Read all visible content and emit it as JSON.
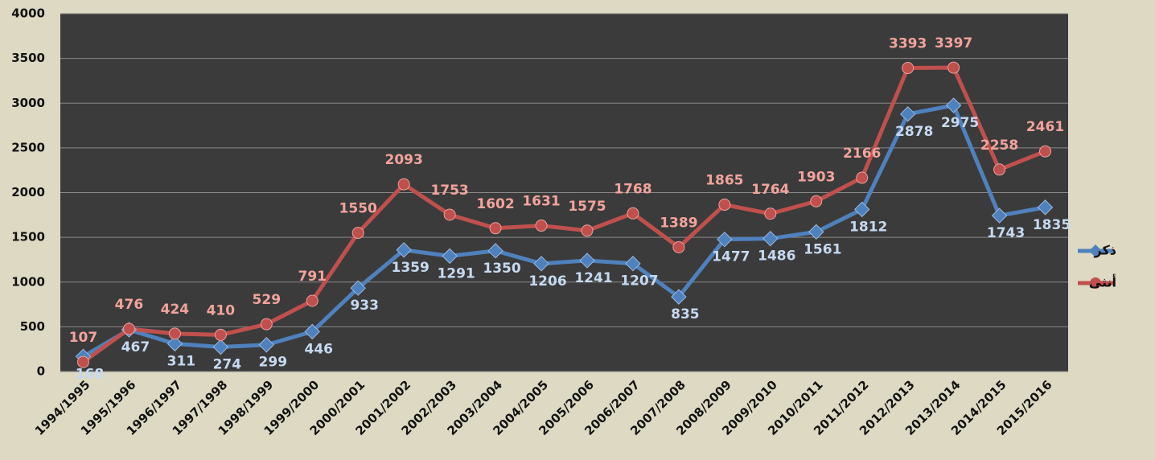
{
  "chart_data": {
    "type": "line",
    "categories": [
      "1994/1995",
      "1995/1996",
      "1996/1997",
      "1997/1998",
      "1998/1999",
      "1999/2000",
      "2000/2001",
      "2001/2002",
      "2002/2003",
      "2003/2004",
      "2004/2005",
      "2005/2006",
      "2006/2007",
      "2007/2008",
      "2008/2009",
      "2009/2010",
      "2010/2011",
      "2011/2012",
      "2012/2013",
      "2013/2014",
      "2014/2015",
      "2015/2016"
    ],
    "series": [
      {
        "name": "ذكر",
        "color": "#4f81bd",
        "marker": "diamond",
        "label_color": "#c6d9f1",
        "values": [
          168,
          467,
          311,
          274,
          299,
          446,
          933,
          1359,
          1291,
          1350,
          1206,
          1241,
          1207,
          835,
          1477,
          1486,
          1561,
          1812,
          2878,
          2975,
          1743,
          1835
        ]
      },
      {
        "name": "أنثى",
        "color": "#c0504d",
        "marker": "circle",
        "label_color": "#f2a49c",
        "values": [
          107,
          476,
          424,
          410,
          529,
          791,
          1550,
          2093,
          1753,
          1602,
          1631,
          1575,
          1768,
          1389,
          1865,
          1764,
          1903,
          2166,
          3393,
          3397,
          2258,
          2461
        ]
      }
    ],
    "ylim": [
      0,
      4000
    ],
    "yticks": [
      0,
      500,
      1000,
      1500,
      2000,
      2500,
      3000,
      3500,
      4000
    ],
    "grid": true,
    "legend": "right"
  }
}
